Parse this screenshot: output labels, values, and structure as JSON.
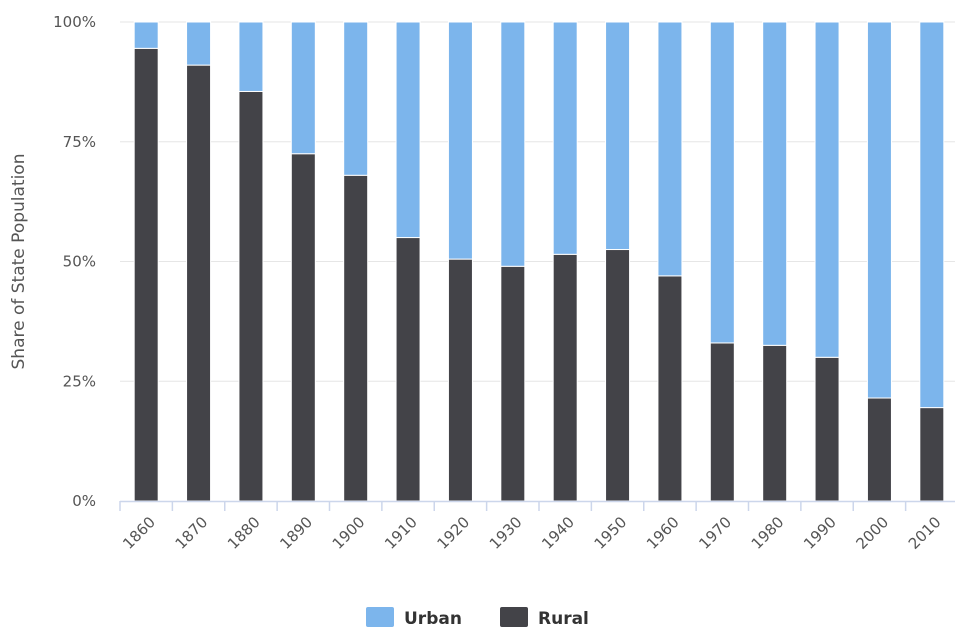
{
  "chart_data": {
    "type": "bar",
    "stacked": true,
    "title": "",
    "xlabel": "",
    "ylabel": "Share of State Population",
    "categories": [
      "1860",
      "1870",
      "1880",
      "1890",
      "1900",
      "1910",
      "1920",
      "1930",
      "1940",
      "1950",
      "1960",
      "1970",
      "1980",
      "1990",
      "2000",
      "2010"
    ],
    "ylim": [
      0,
      100
    ],
    "y_ticks": [
      "0%",
      "25%",
      "50%",
      "75%",
      "100%"
    ],
    "y_tick_values": [
      0,
      25,
      50,
      75,
      100
    ],
    "series": [
      {
        "name": "Rural",
        "color": "#434348",
        "values": [
          94.5,
          91,
          85.5,
          72.5,
          68,
          55,
          50.5,
          49,
          51.5,
          52.5,
          47,
          33,
          32.5,
          30,
          21.5,
          19.5
        ]
      },
      {
        "name": "Urban",
        "color": "#7cb5ec",
        "values": [
          5.5,
          9,
          14.5,
          27.5,
          32,
          45,
          49.5,
          51,
          48.5,
          47.5,
          53,
          67,
          67.5,
          70,
          78.5,
          80.5
        ]
      }
    ],
    "grid": true,
    "legend": {
      "position": "bottom-center",
      "order": [
        "Urban",
        "Rural"
      ]
    }
  }
}
